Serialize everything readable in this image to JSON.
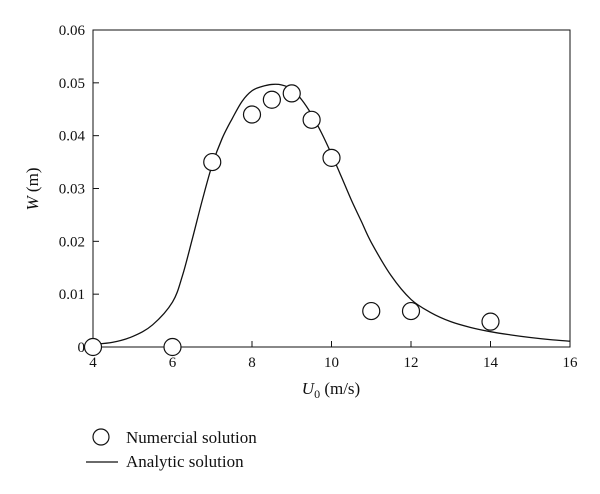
{
  "chart_data": {
    "type": "scatter",
    "title": "",
    "xlabel": {
      "symbol": "U",
      "subscript": "0",
      "unit": " (m/s)"
    },
    "ylabel": {
      "symbol": "W",
      "unit": " (m)"
    },
    "xlim": [
      4,
      16
    ],
    "ylim": [
      0,
      0.06
    ],
    "x_ticks": [
      4,
      6,
      8,
      10,
      12,
      14,
      16
    ],
    "y_ticks": [
      0,
      0.01,
      0.02,
      0.03,
      0.04,
      0.05,
      0.06
    ],
    "x_tick_labels": [
      "4",
      "6",
      "8",
      "10",
      "12",
      "14",
      "16"
    ],
    "y_tick_labels": [
      "0",
      "0.01",
      "0.02",
      "0.03",
      "0.04",
      "0.05",
      "0.06"
    ],
    "grid": false,
    "legend_position": "bottom-left, below plot",
    "series": [
      {
        "name": "Numercial solution",
        "kind": "scatter",
        "marker": "open-circle",
        "x": [
          4,
          6,
          7,
          8,
          8.5,
          9,
          9.5,
          10,
          11,
          12,
          14
        ],
        "y": [
          0.0,
          0.0,
          0.035,
          0.044,
          0.0468,
          0.048,
          0.043,
          0.0358,
          0.0068,
          0.0068,
          0.0048
        ]
      },
      {
        "name": "Analytic solution",
        "kind": "line",
        "x": [
          4,
          4.5,
          5,
          5.5,
          6,
          6.25,
          6.5,
          6.75,
          7,
          7.25,
          7.5,
          7.75,
          8,
          8.25,
          8.5,
          8.75,
          9,
          9.25,
          9.5,
          9.75,
          10,
          10.25,
          10.5,
          10.75,
          11,
          11.5,
          12,
          12.5,
          13,
          13.5,
          14,
          14.5,
          15,
          15.5,
          16
        ],
        "y": [
          0.0005,
          0.0009,
          0.002,
          0.0042,
          0.0085,
          0.0135,
          0.0205,
          0.0278,
          0.0345,
          0.0395,
          0.0432,
          0.0465,
          0.0485,
          0.0493,
          0.0497,
          0.0496,
          0.0488,
          0.0468,
          0.044,
          0.0405,
          0.0365,
          0.0322,
          0.0278,
          0.0238,
          0.0198,
          0.0135,
          0.009,
          0.0065,
          0.0048,
          0.0037,
          0.0029,
          0.0023,
          0.0018,
          0.0014,
          0.0011
        ]
      }
    ]
  }
}
